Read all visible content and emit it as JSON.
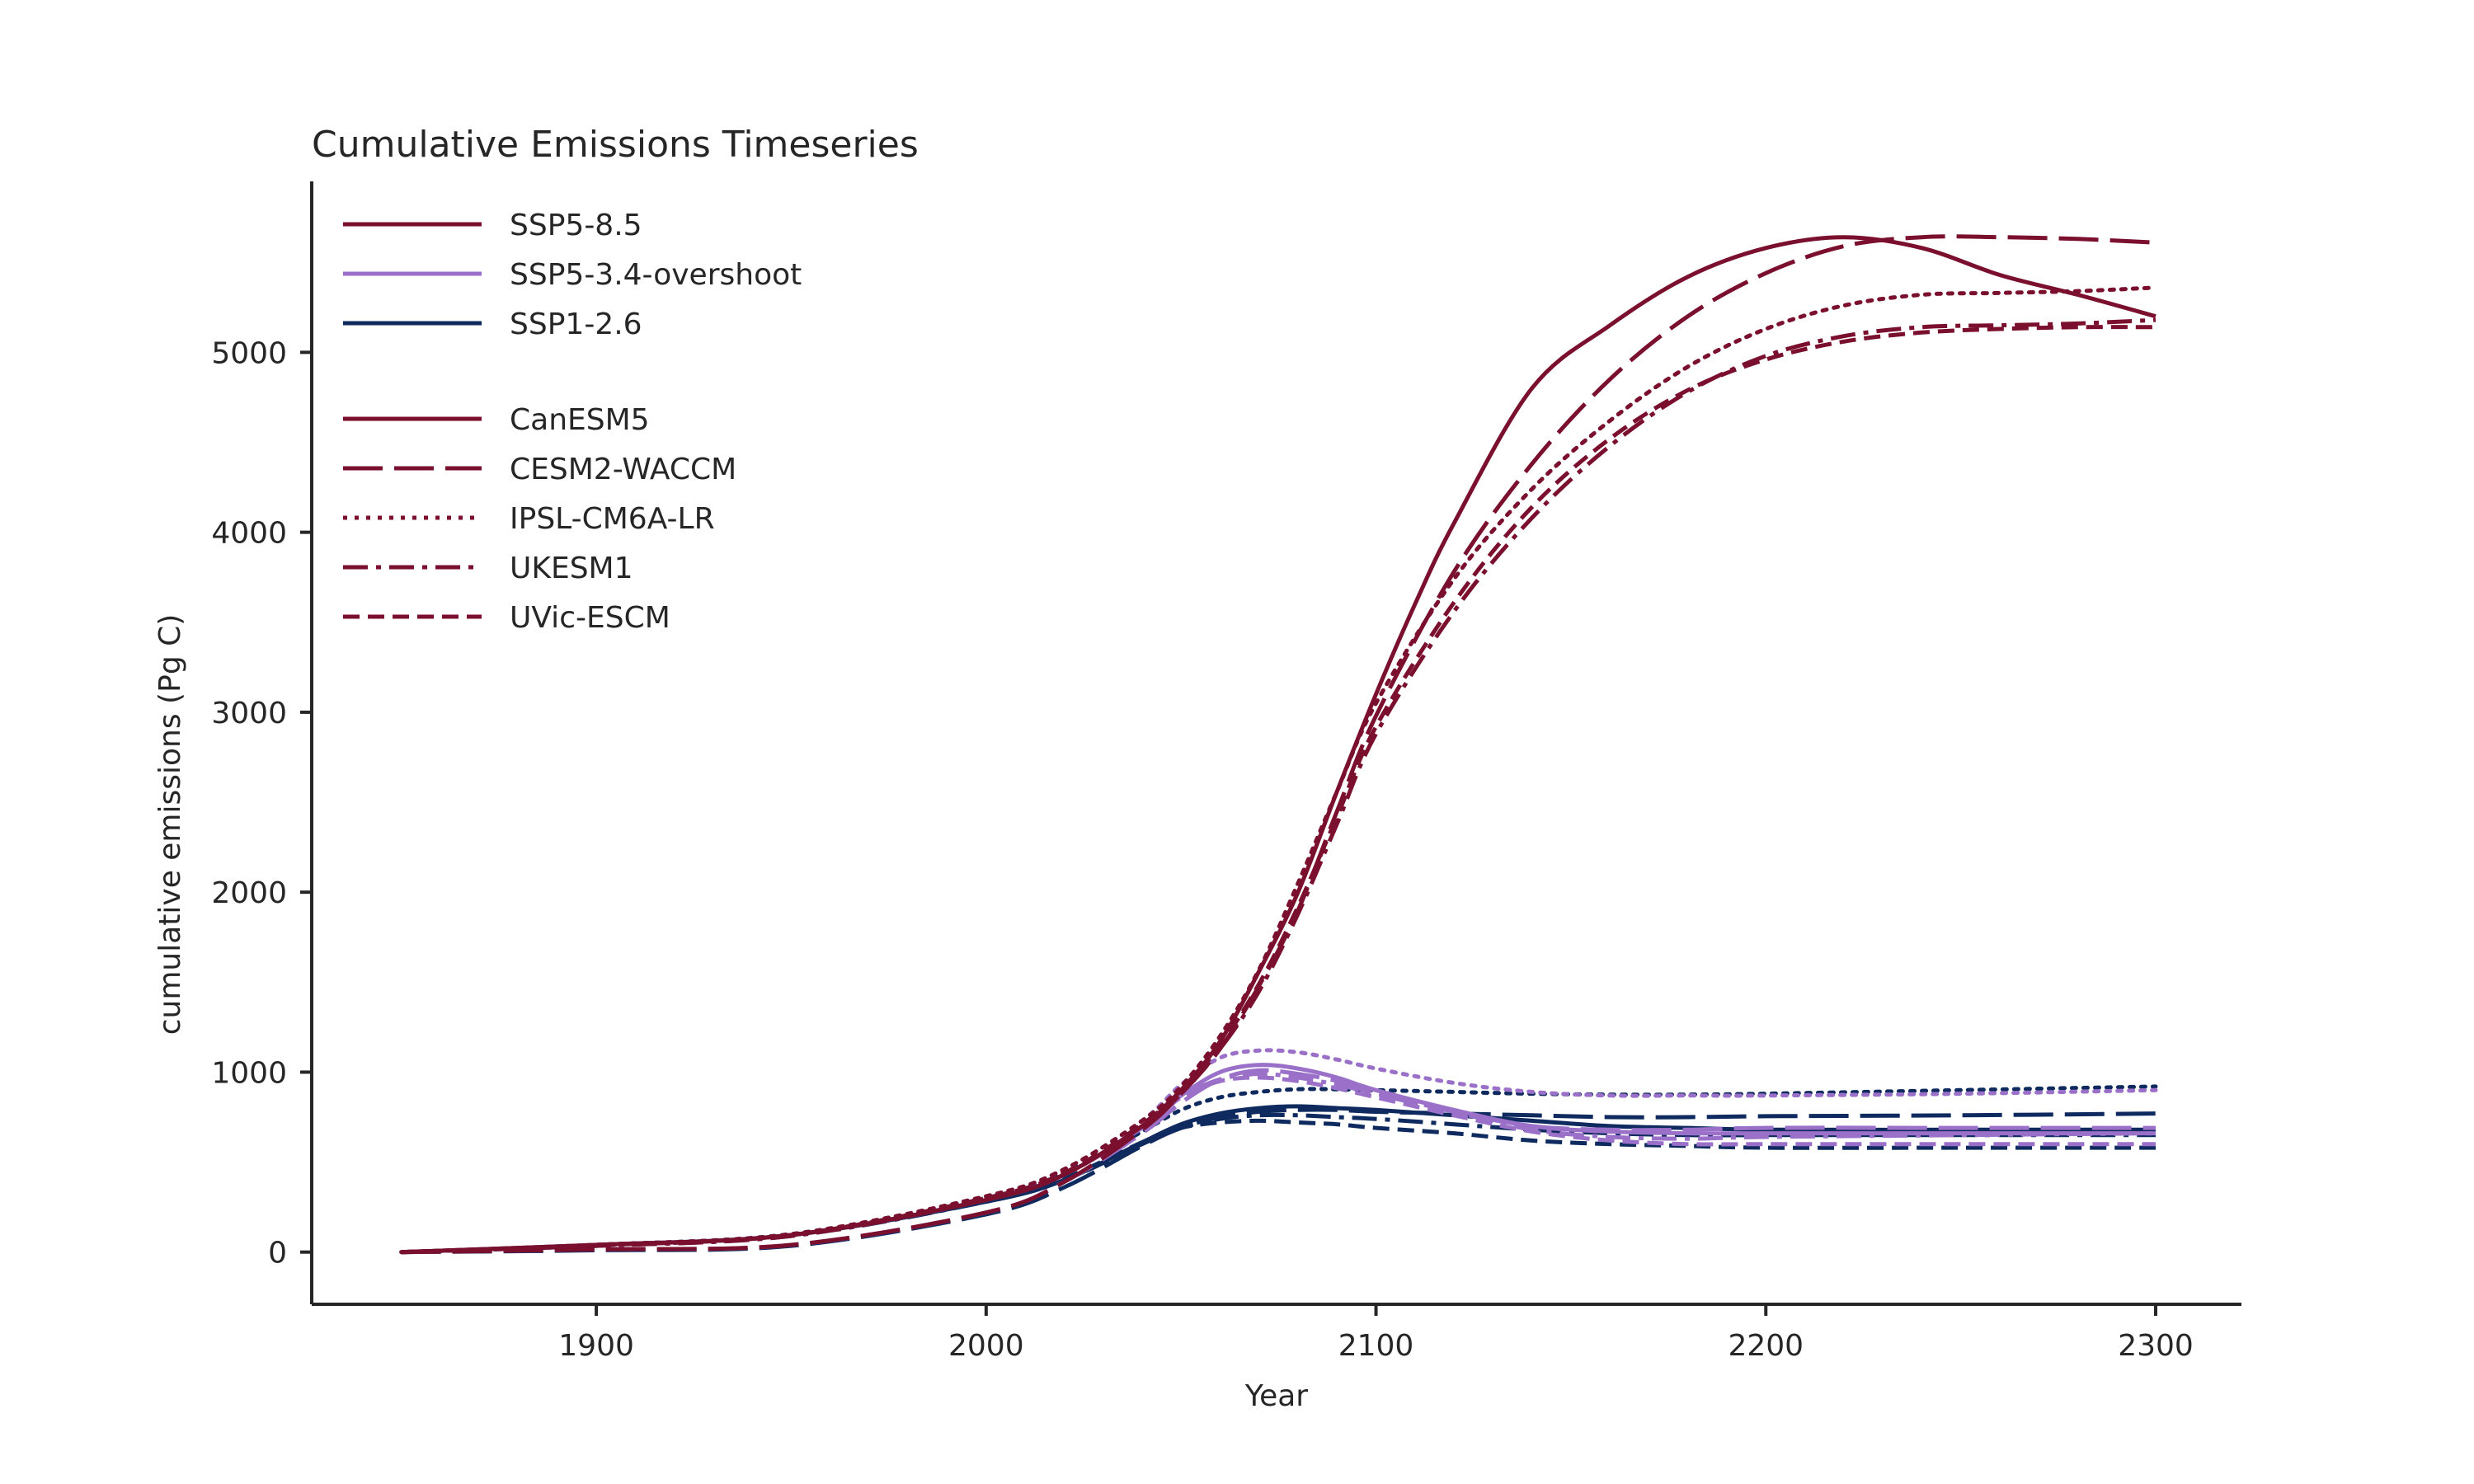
{
  "chart_data": {
    "type": "line",
    "title": "Cumulative Emissions Timeseries",
    "xlabel": "Year",
    "ylabel": "cumulative emissions (Pg C)",
    "xlim": [
      1827,
      2322
    ],
    "ylim": [
      -290,
      5950
    ],
    "xticks": [
      1900,
      2000,
      2100,
      2200,
      2300
    ],
    "yticks": [
      0,
      1000,
      2000,
      3000,
      4000,
      5000
    ],
    "grid": false,
    "legend_position": "top-left",
    "scenarios": [
      {
        "name": "SSP5-8.5",
        "color": "#7a0f2e"
      },
      {
        "name": "SSP5-3.4-overshoot",
        "color": "#9a70c8"
      },
      {
        "name": "SSP1-2.6",
        "color": "#0e2a5e"
      }
    ],
    "models": [
      {
        "name": "CanESM5",
        "dash": "solid"
      },
      {
        "name": "CESM2-WACCM",
        "dash": "longdash"
      },
      {
        "name": "IPSL-CM6A-LR",
        "dash": "dotted"
      },
      {
        "name": "UKESM1",
        "dash": "dashdot"
      },
      {
        "name": "UVic-ESCM",
        "dash": "dashed"
      }
    ],
    "series": [
      {
        "scenario": "SSP5-8.5",
        "model": "CanESM5",
        "x": [
          1850,
          1900,
          1950,
          2000,
          2020,
          2040,
          2050,
          2060,
          2070,
          2080,
          2090,
          2100,
          2110,
          2120,
          2140,
          2160,
          2180,
          2200,
          2220,
          2240,
          2260,
          2280,
          2300
        ],
        "y": [
          0,
          40,
          95,
          290,
          430,
          700,
          900,
          1170,
          1560,
          2000,
          2560,
          3100,
          3600,
          4050,
          4800,
          5150,
          5420,
          5580,
          5640,
          5580,
          5430,
          5320,
          5200
        ]
      },
      {
        "scenario": "SSP5-8.5",
        "model": "CESM2-WACCM",
        "x": [
          1850,
          1900,
          1950,
          2000,
          2020,
          2040,
          2050,
          2060,
          2070,
          2080,
          2090,
          2100,
          2120,
          2140,
          2160,
          2180,
          2200,
          2220,
          2240,
          2260,
          2280,
          2300
        ],
        "y": [
          0,
          15,
          40,
          220,
          390,
          680,
          880,
          1130,
          1480,
          1900,
          2450,
          2980,
          3780,
          4380,
          4850,
          5200,
          5440,
          5590,
          5640,
          5640,
          5630,
          5610
        ]
      },
      {
        "scenario": "SSP5-8.5",
        "model": "IPSL-CM6A-LR",
        "x": [
          1850,
          1900,
          1950,
          2000,
          2020,
          2040,
          2050,
          2060,
          2070,
          2080,
          2090,
          2100,
          2120,
          2140,
          2160,
          2180,
          2200,
          2220,
          2240,
          2260,
          2280,
          2300
        ],
        "y": [
          0,
          40,
          100,
          310,
          460,
          730,
          920,
          1200,
          1570,
          2050,
          2560,
          3050,
          3740,
          4240,
          4620,
          4920,
          5130,
          5260,
          5320,
          5330,
          5340,
          5360
        ]
      },
      {
        "scenario": "SSP5-8.5",
        "model": "UKESM1",
        "x": [
          1850,
          1900,
          1950,
          2000,
          2020,
          2040,
          2050,
          2060,
          2070,
          2080,
          2090,
          2100,
          2120,
          2140,
          2160,
          2180,
          2200,
          2220,
          2240,
          2260,
          2280,
          2300
        ],
        "y": [
          0,
          35,
          90,
          290,
          430,
          700,
          880,
          1130,
          1450,
          1880,
          2380,
          2880,
          3560,
          4080,
          4480,
          4780,
          4980,
          5090,
          5140,
          5150,
          5160,
          5180
        ]
      },
      {
        "scenario": "SSP5-8.5",
        "model": "UVic-ESCM",
        "x": [
          1850,
          1900,
          1950,
          2000,
          2020,
          2040,
          2050,
          2060,
          2070,
          2080,
          2090,
          2100,
          2120,
          2140,
          2160,
          2180,
          2200,
          2220,
          2240,
          2260,
          2280,
          2300
        ],
        "y": [
          0,
          38,
          95,
          300,
          440,
          710,
          900,
          1150,
          1490,
          1920,
          2420,
          2920,
          3610,
          4140,
          4520,
          4790,
          4960,
          5060,
          5110,
          5130,
          5140,
          5140
        ]
      },
      {
        "scenario": "SSP5-3.4-overshoot",
        "model": "CanESM5",
        "x": [
          1850,
          1900,
          1950,
          2000,
          2020,
          2040,
          2050,
          2060,
          2070,
          2080,
          2090,
          2100,
          2120,
          2140,
          2160,
          2180,
          2200,
          2250,
          2300
        ],
        "y": [
          0,
          40,
          95,
          290,
          430,
          700,
          870,
          1000,
          1040,
          1020,
          970,
          900,
          790,
          700,
          670,
          660,
          660,
          660,
          660
        ]
      },
      {
        "scenario": "SSP5-3.4-overshoot",
        "model": "CESM2-WACCM",
        "x": [
          1850,
          1900,
          1950,
          2000,
          2020,
          2040,
          2050,
          2060,
          2070,
          2080,
          2090,
          2100,
          2120,
          2140,
          2160,
          2180,
          2200,
          2250,
          2300
        ],
        "y": [
          0,
          15,
          40,
          220,
          390,
          660,
          830,
          960,
          1010,
          990,
          950,
          880,
          780,
          700,
          680,
          680,
          690,
          690,
          690
        ]
      },
      {
        "scenario": "SSP5-3.4-overshoot",
        "model": "IPSL-CM6A-LR",
        "x": [
          1850,
          1900,
          1950,
          2000,
          2020,
          2040,
          2050,
          2060,
          2070,
          2080,
          2090,
          2100,
          2120,
          2140,
          2160,
          2180,
          2200,
          2250,
          2300
        ],
        "y": [
          0,
          40,
          100,
          310,
          460,
          730,
          930,
          1080,
          1120,
          1110,
          1070,
          1020,
          940,
          890,
          870,
          870,
          870,
          880,
          900
        ]
      },
      {
        "scenario": "SSP5-3.4-overshoot",
        "model": "UKESM1",
        "x": [
          1850,
          1900,
          1950,
          2000,
          2020,
          2040,
          2050,
          2060,
          2070,
          2080,
          2090,
          2100,
          2120,
          2140,
          2160,
          2180,
          2200,
          2250,
          2300
        ],
        "y": [
          0,
          35,
          90,
          290,
          430,
          690,
          860,
          960,
          990,
          970,
          930,
          880,
          780,
          680,
          640,
          630,
          640,
          650,
          660
        ]
      },
      {
        "scenario": "SSP5-3.4-overshoot",
        "model": "UVic-ESCM",
        "x": [
          1850,
          1900,
          1950,
          2000,
          2020,
          2040,
          2050,
          2060,
          2070,
          2080,
          2090,
          2100,
          2120,
          2140,
          2160,
          2180,
          2200,
          2250,
          2300
        ],
        "y": [
          0,
          38,
          95,
          300,
          440,
          700,
          860,
          950,
          970,
          950,
          910,
          860,
          760,
          670,
          620,
          600,
          600,
          600,
          600
        ]
      },
      {
        "scenario": "SSP1-2.6",
        "model": "CanESM5",
        "x": [
          1850,
          1900,
          1950,
          2000,
          2020,
          2040,
          2050,
          2060,
          2070,
          2080,
          2090,
          2100,
          2120,
          2140,
          2160,
          2180,
          2200,
          2250,
          2300
        ],
        "y": [
          0,
          40,
          95,
          280,
          400,
          610,
          710,
          770,
          800,
          810,
          800,
          790,
          760,
          730,
          700,
          690,
          680,
          680,
          680
        ]
      },
      {
        "scenario": "SSP1-2.6",
        "model": "CESM2-WACCM",
        "x": [
          1850,
          1900,
          1950,
          2000,
          2020,
          2040,
          2050,
          2060,
          2070,
          2080,
          2090,
          2100,
          2120,
          2140,
          2160,
          2180,
          2200,
          2250,
          2300
        ],
        "y": [
          0,
          10,
          35,
          210,
          360,
          590,
          690,
          750,
          780,
          790,
          790,
          780,
          770,
          760,
          750,
          750,
          755,
          760,
          770
        ]
      },
      {
        "scenario": "SSP1-2.6",
        "model": "IPSL-CM6A-LR",
        "x": [
          1850,
          1900,
          1950,
          2000,
          2020,
          2040,
          2050,
          2060,
          2070,
          2080,
          2090,
          2100,
          2120,
          2140,
          2160,
          2180,
          2200,
          2250,
          2300
        ],
        "y": [
          0,
          40,
          100,
          300,
          440,
          670,
          790,
          860,
          890,
          905,
          905,
          900,
          890,
          880,
          875,
          875,
          880,
          900,
          920
        ]
      },
      {
        "scenario": "SSP1-2.6",
        "model": "UKESM1",
        "x": [
          1850,
          1900,
          1950,
          2000,
          2020,
          2040,
          2050,
          2060,
          2070,
          2080,
          2090,
          2100,
          2120,
          2140,
          2160,
          2180,
          2200,
          2250,
          2300
        ],
        "y": [
          0,
          35,
          90,
          280,
          400,
          600,
          690,
          740,
          760,
          760,
          750,
          740,
          710,
          680,
          660,
          650,
          650,
          650,
          650
        ]
      },
      {
        "scenario": "SSP1-2.6",
        "model": "UVic-ESCM",
        "x": [
          1850,
          1900,
          1950,
          2000,
          2020,
          2040,
          2050,
          2060,
          2070,
          2080,
          2090,
          2100,
          2120,
          2140,
          2160,
          2180,
          2200,
          2250,
          2300
        ],
        "y": [
          0,
          38,
          95,
          290,
          410,
          610,
          690,
          720,
          730,
          720,
          710,
          690,
          660,
          620,
          600,
          590,
          580,
          580,
          580
        ]
      }
    ]
  }
}
